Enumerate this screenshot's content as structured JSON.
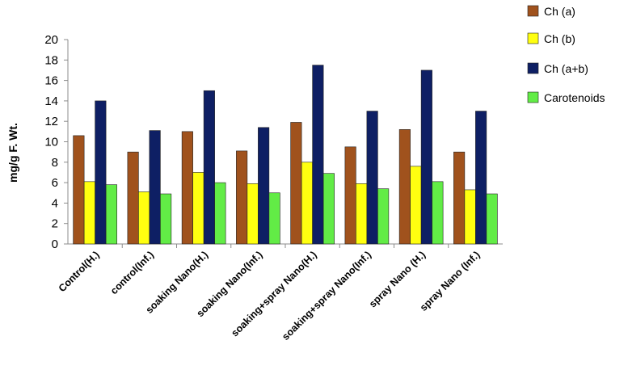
{
  "chart_data": {
    "type": "bar",
    "title": "",
    "xlabel": "",
    "ylabel": "mg/g F. Wt.",
    "ylim": [
      0,
      20
    ],
    "yticks": [
      0,
      2,
      4,
      6,
      8,
      10,
      12,
      14,
      16,
      18,
      20
    ],
    "grid": false,
    "legend_position": "top-right",
    "categories": [
      "Control(H.)",
      "control(Inf.)",
      "soaking Nano(H.)",
      "soaking Nano(Inf.)",
      "soaking+spray Nano(H.)",
      "soaking+spray  Nano(Inf.)",
      "spray Nano (H.)",
      "spray Nano (Inf.)"
    ],
    "series": [
      {
        "name": "Ch (a)",
        "color": "#a0521d",
        "values": [
          10.6,
          9.0,
          11.0,
          9.1,
          11.9,
          9.5,
          11.2,
          9.0
        ]
      },
      {
        "name": "Ch (b)",
        "color": "#ffff10",
        "values": [
          6.1,
          5.1,
          7.0,
          5.9,
          8.0,
          5.9,
          7.6,
          5.3
        ]
      },
      {
        "name": "Ch (a+b)",
        "color": "#0e1f64",
        "values": [
          14.0,
          11.1,
          15.0,
          11.4,
          17.5,
          13.0,
          17.0,
          13.0
        ]
      },
      {
        "name": "Carotenoids",
        "color": "#62ec46",
        "values": [
          5.8,
          4.9,
          6.0,
          5.0,
          6.9,
          5.4,
          6.1,
          4.9
        ]
      }
    ]
  }
}
